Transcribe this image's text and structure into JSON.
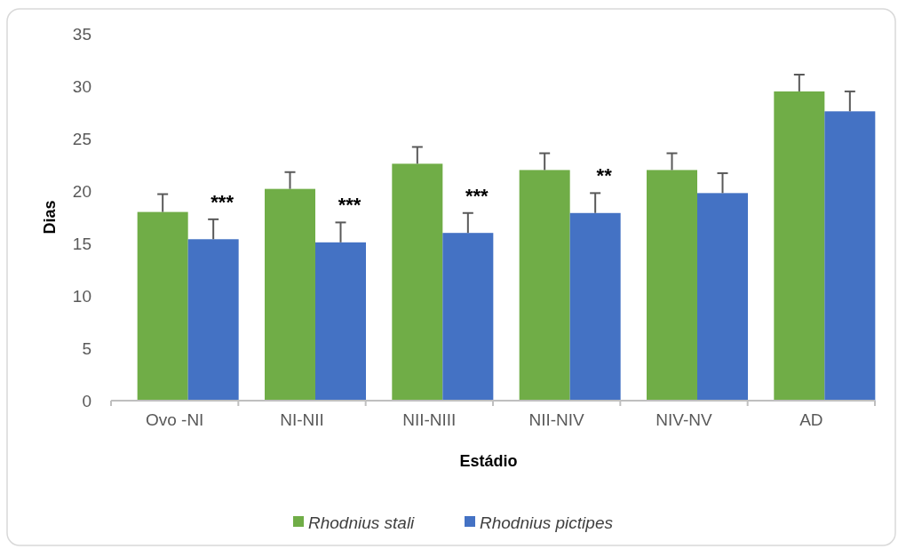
{
  "chart_data": {
    "type": "bar",
    "xlabel": "Estádio",
    "ylabel": "Dias",
    "categories": [
      "Ovo -NI",
      "NI-NII",
      "NII-NIII",
      "NII-NIV",
      "NIV-NV",
      "AD"
    ],
    "series": [
      {
        "name": "Rhodnius stali",
        "color": "#70ad47",
        "values": [
          18.0,
          20.2,
          22.6,
          22.0,
          22.0,
          29.5
        ],
        "errors": [
          [
            18.0,
            19.7
          ],
          [
            20.2,
            21.8
          ],
          [
            22.6,
            24.2
          ],
          [
            22.0,
            23.6
          ],
          [
            22.0,
            23.6
          ],
          [
            29.5,
            31.1
          ]
        ]
      },
      {
        "name": "Rhodnius pictipes",
        "color": "#4472c4",
        "values": [
          15.4,
          15.1,
          16.0,
          17.9,
          19.8,
          27.6
        ],
        "errors": [
          [
            15.4,
            17.3
          ],
          [
            15.1,
            17.0
          ],
          [
            16.0,
            17.9
          ],
          [
            17.9,
            19.8
          ],
          [
            19.8,
            21.7
          ],
          [
            27.6,
            29.5
          ]
        ]
      }
    ],
    "annotations": [
      "***",
      "***",
      "***",
      "**"
    ],
    "ylim": [
      0,
      35
    ],
    "yticks": [
      0,
      5,
      10,
      15,
      20,
      25,
      30,
      35
    ],
    "grid": false,
    "legend": "bottom"
  }
}
